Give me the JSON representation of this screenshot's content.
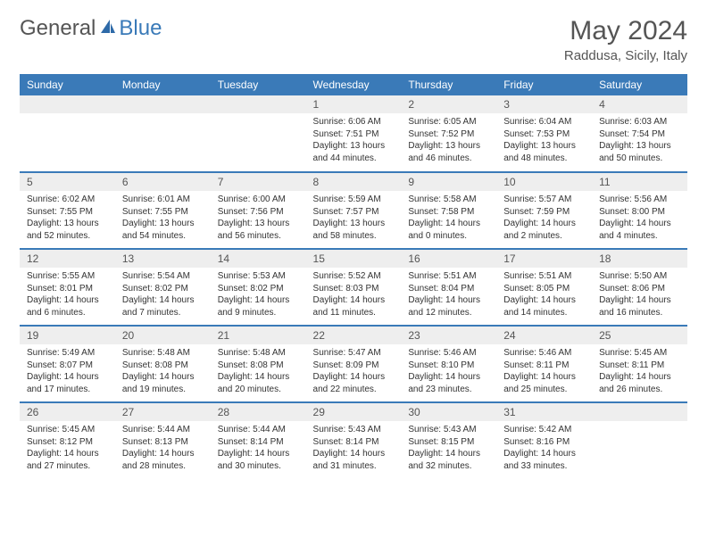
{
  "logo": {
    "general": "General",
    "blue": "Blue"
  },
  "title": "May 2024",
  "subtitle": "Raddusa, Sicily, Italy",
  "colors": {
    "header_bg": "#3a7ab8",
    "header_text": "#ffffff",
    "daynum_bg": "#eeeeee",
    "row_border": "#3a7ab8",
    "text": "#333333",
    "title_color": "#555555"
  },
  "days_of_week": [
    "Sunday",
    "Monday",
    "Tuesday",
    "Wednesday",
    "Thursday",
    "Friday",
    "Saturday"
  ],
  "weeks": [
    [
      null,
      null,
      null,
      {
        "n": "1",
        "sr": "Sunrise: 6:06 AM",
        "ss": "Sunset: 7:51 PM",
        "dl1": "Daylight: 13 hours",
        "dl2": "and 44 minutes."
      },
      {
        "n": "2",
        "sr": "Sunrise: 6:05 AM",
        "ss": "Sunset: 7:52 PM",
        "dl1": "Daylight: 13 hours",
        "dl2": "and 46 minutes."
      },
      {
        "n": "3",
        "sr": "Sunrise: 6:04 AM",
        "ss": "Sunset: 7:53 PM",
        "dl1": "Daylight: 13 hours",
        "dl2": "and 48 minutes."
      },
      {
        "n": "4",
        "sr": "Sunrise: 6:03 AM",
        "ss": "Sunset: 7:54 PM",
        "dl1": "Daylight: 13 hours",
        "dl2": "and 50 minutes."
      }
    ],
    [
      {
        "n": "5",
        "sr": "Sunrise: 6:02 AM",
        "ss": "Sunset: 7:55 PM",
        "dl1": "Daylight: 13 hours",
        "dl2": "and 52 minutes."
      },
      {
        "n": "6",
        "sr": "Sunrise: 6:01 AM",
        "ss": "Sunset: 7:55 PM",
        "dl1": "Daylight: 13 hours",
        "dl2": "and 54 minutes."
      },
      {
        "n": "7",
        "sr": "Sunrise: 6:00 AM",
        "ss": "Sunset: 7:56 PM",
        "dl1": "Daylight: 13 hours",
        "dl2": "and 56 minutes."
      },
      {
        "n": "8",
        "sr": "Sunrise: 5:59 AM",
        "ss": "Sunset: 7:57 PM",
        "dl1": "Daylight: 13 hours",
        "dl2": "and 58 minutes."
      },
      {
        "n": "9",
        "sr": "Sunrise: 5:58 AM",
        "ss": "Sunset: 7:58 PM",
        "dl1": "Daylight: 14 hours",
        "dl2": "and 0 minutes."
      },
      {
        "n": "10",
        "sr": "Sunrise: 5:57 AM",
        "ss": "Sunset: 7:59 PM",
        "dl1": "Daylight: 14 hours",
        "dl2": "and 2 minutes."
      },
      {
        "n": "11",
        "sr": "Sunrise: 5:56 AM",
        "ss": "Sunset: 8:00 PM",
        "dl1": "Daylight: 14 hours",
        "dl2": "and 4 minutes."
      }
    ],
    [
      {
        "n": "12",
        "sr": "Sunrise: 5:55 AM",
        "ss": "Sunset: 8:01 PM",
        "dl1": "Daylight: 14 hours",
        "dl2": "and 6 minutes."
      },
      {
        "n": "13",
        "sr": "Sunrise: 5:54 AM",
        "ss": "Sunset: 8:02 PM",
        "dl1": "Daylight: 14 hours",
        "dl2": "and 7 minutes."
      },
      {
        "n": "14",
        "sr": "Sunrise: 5:53 AM",
        "ss": "Sunset: 8:02 PM",
        "dl1": "Daylight: 14 hours",
        "dl2": "and 9 minutes."
      },
      {
        "n": "15",
        "sr": "Sunrise: 5:52 AM",
        "ss": "Sunset: 8:03 PM",
        "dl1": "Daylight: 14 hours",
        "dl2": "and 11 minutes."
      },
      {
        "n": "16",
        "sr": "Sunrise: 5:51 AM",
        "ss": "Sunset: 8:04 PM",
        "dl1": "Daylight: 14 hours",
        "dl2": "and 12 minutes."
      },
      {
        "n": "17",
        "sr": "Sunrise: 5:51 AM",
        "ss": "Sunset: 8:05 PM",
        "dl1": "Daylight: 14 hours",
        "dl2": "and 14 minutes."
      },
      {
        "n": "18",
        "sr": "Sunrise: 5:50 AM",
        "ss": "Sunset: 8:06 PM",
        "dl1": "Daylight: 14 hours",
        "dl2": "and 16 minutes."
      }
    ],
    [
      {
        "n": "19",
        "sr": "Sunrise: 5:49 AM",
        "ss": "Sunset: 8:07 PM",
        "dl1": "Daylight: 14 hours",
        "dl2": "and 17 minutes."
      },
      {
        "n": "20",
        "sr": "Sunrise: 5:48 AM",
        "ss": "Sunset: 8:08 PM",
        "dl1": "Daylight: 14 hours",
        "dl2": "and 19 minutes."
      },
      {
        "n": "21",
        "sr": "Sunrise: 5:48 AM",
        "ss": "Sunset: 8:08 PM",
        "dl1": "Daylight: 14 hours",
        "dl2": "and 20 minutes."
      },
      {
        "n": "22",
        "sr": "Sunrise: 5:47 AM",
        "ss": "Sunset: 8:09 PM",
        "dl1": "Daylight: 14 hours",
        "dl2": "and 22 minutes."
      },
      {
        "n": "23",
        "sr": "Sunrise: 5:46 AM",
        "ss": "Sunset: 8:10 PM",
        "dl1": "Daylight: 14 hours",
        "dl2": "and 23 minutes."
      },
      {
        "n": "24",
        "sr": "Sunrise: 5:46 AM",
        "ss": "Sunset: 8:11 PM",
        "dl1": "Daylight: 14 hours",
        "dl2": "and 25 minutes."
      },
      {
        "n": "25",
        "sr": "Sunrise: 5:45 AM",
        "ss": "Sunset: 8:11 PM",
        "dl1": "Daylight: 14 hours",
        "dl2": "and 26 minutes."
      }
    ],
    [
      {
        "n": "26",
        "sr": "Sunrise: 5:45 AM",
        "ss": "Sunset: 8:12 PM",
        "dl1": "Daylight: 14 hours",
        "dl2": "and 27 minutes."
      },
      {
        "n": "27",
        "sr": "Sunrise: 5:44 AM",
        "ss": "Sunset: 8:13 PM",
        "dl1": "Daylight: 14 hours",
        "dl2": "and 28 minutes."
      },
      {
        "n": "28",
        "sr": "Sunrise: 5:44 AM",
        "ss": "Sunset: 8:14 PM",
        "dl1": "Daylight: 14 hours",
        "dl2": "and 30 minutes."
      },
      {
        "n": "29",
        "sr": "Sunrise: 5:43 AM",
        "ss": "Sunset: 8:14 PM",
        "dl1": "Daylight: 14 hours",
        "dl2": "and 31 minutes."
      },
      {
        "n": "30",
        "sr": "Sunrise: 5:43 AM",
        "ss": "Sunset: 8:15 PM",
        "dl1": "Daylight: 14 hours",
        "dl2": "and 32 minutes."
      },
      {
        "n": "31",
        "sr": "Sunrise: 5:42 AM",
        "ss": "Sunset: 8:16 PM",
        "dl1": "Daylight: 14 hours",
        "dl2": "and 33 minutes."
      },
      null
    ]
  ]
}
